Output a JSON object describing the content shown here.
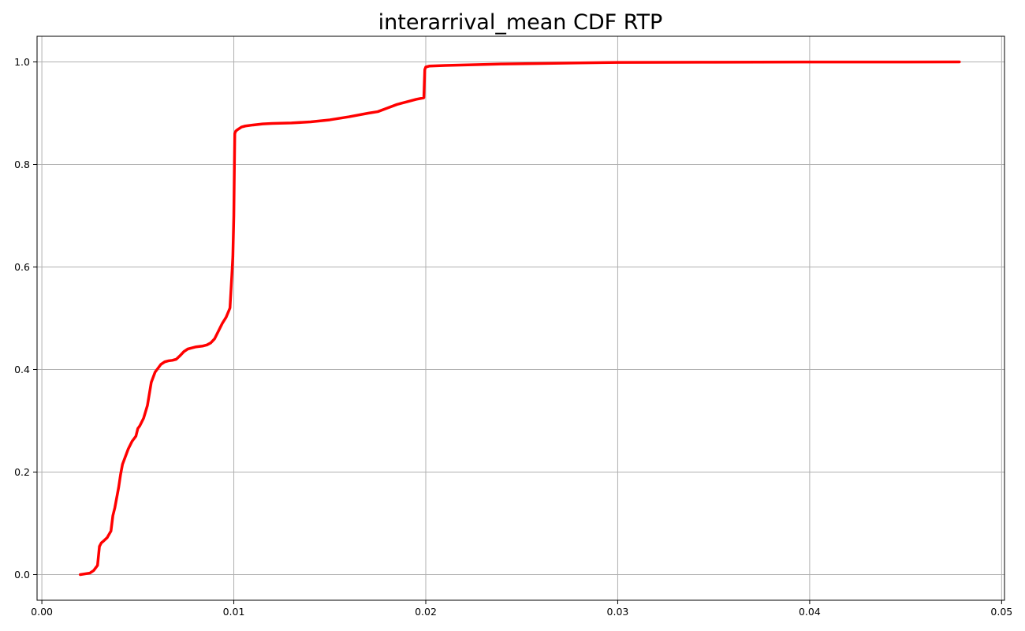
{
  "chart_data": {
    "type": "line",
    "title": "interarrival_mean CDF RTP",
    "xlabel": "",
    "ylabel": "",
    "xlim": [
      -0.00025,
      0.05015
    ],
    "ylim": [
      -0.05,
      1.05
    ],
    "x_ticks": [
      0.0,
      0.01,
      0.02,
      0.03,
      0.04,
      0.05
    ],
    "x_tick_labels": [
      "0.00",
      "0.01",
      "0.02",
      "0.03",
      "0.04",
      "0.05"
    ],
    "y_ticks": [
      0.0,
      0.2,
      0.4,
      0.6,
      0.8,
      1.0
    ],
    "y_tick_labels": [
      "0.0",
      "0.2",
      "0.4",
      "0.6",
      "0.8",
      "1.0"
    ],
    "grid": true,
    "series": [
      {
        "color": "#ff0000",
        "x": [
          0.002,
          0.0025,
          0.0027,
          0.0029,
          0.003,
          0.0031,
          0.0032,
          0.0034,
          0.0036,
          0.0037,
          0.0038,
          0.004,
          0.0041,
          0.0042,
          0.0044,
          0.0045,
          0.0047,
          0.0049,
          0.005,
          0.0051,
          0.0053,
          0.0055,
          0.0057,
          0.0059,
          0.006,
          0.0062,
          0.0064,
          0.0066,
          0.0068,
          0.007,
          0.0072,
          0.0074,
          0.0076,
          0.0078,
          0.008,
          0.0082,
          0.0084,
          0.0086,
          0.0088,
          0.009,
          0.0092,
          0.0094,
          0.0096,
          0.0098,
          0.0099,
          0.00995,
          0.01,
          0.01005,
          0.0101,
          0.0102,
          0.0104,
          0.0106,
          0.011,
          0.0115,
          0.012,
          0.013,
          0.014,
          0.015,
          0.016,
          0.017,
          0.0175,
          0.018,
          0.0185,
          0.019,
          0.0195,
          0.0199,
          0.01995,
          0.02,
          0.0202,
          0.021,
          0.022,
          0.023,
          0.024,
          0.026,
          0.028,
          0.03,
          0.035,
          0.04,
          0.045,
          0.0478
        ],
        "y": [
          0.0,
          0.003,
          0.008,
          0.018,
          0.055,
          0.062,
          0.065,
          0.072,
          0.085,
          0.115,
          0.13,
          0.17,
          0.195,
          0.215,
          0.235,
          0.245,
          0.26,
          0.27,
          0.285,
          0.29,
          0.305,
          0.33,
          0.375,
          0.395,
          0.4,
          0.41,
          0.415,
          0.417,
          0.418,
          0.42,
          0.427,
          0.435,
          0.44,
          0.442,
          0.444,
          0.445,
          0.446,
          0.448,
          0.452,
          0.46,
          0.475,
          0.49,
          0.502,
          0.52,
          0.585,
          0.62,
          0.7,
          0.86,
          0.865,
          0.868,
          0.873,
          0.875,
          0.877,
          0.879,
          0.88,
          0.881,
          0.883,
          0.887,
          0.893,
          0.9,
          0.903,
          0.91,
          0.917,
          0.922,
          0.927,
          0.93,
          0.985,
          0.99,
          0.992,
          0.993,
          0.994,
          0.995,
          0.996,
          0.997,
          0.998,
          0.999,
          0.9995,
          0.9998,
          0.9999,
          1.0
        ]
      }
    ]
  }
}
